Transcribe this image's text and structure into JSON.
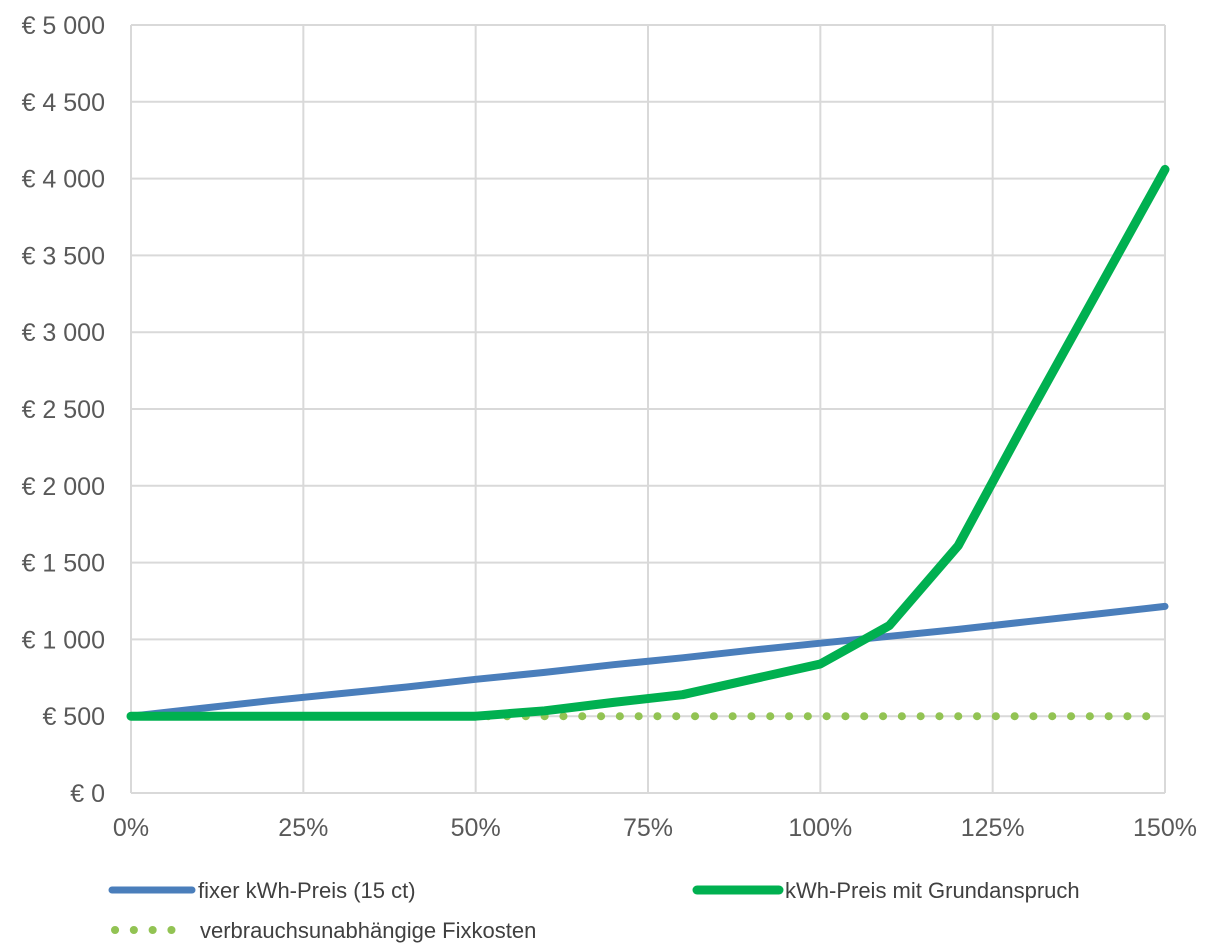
{
  "chart_data": {
    "type": "line",
    "title": "",
    "xlabel": "",
    "ylabel": "",
    "x": [
      0,
      10,
      20,
      30,
      40,
      50,
      60,
      70,
      80,
      90,
      100,
      110,
      120,
      130,
      140,
      150
    ],
    "x_ticks": [
      0,
      25,
      50,
      75,
      100,
      125,
      150
    ],
    "x_tick_labels": [
      "0%",
      "25%",
      "50%",
      "75%",
      "100%",
      "125%",
      "150%"
    ],
    "y_ticks": [
      0,
      500,
      1000,
      1500,
      2000,
      2500,
      3000,
      3500,
      4000,
      4500,
      5000
    ],
    "y_tick_labels": [
      "€ 0",
      "€ 500",
      "€ 1 000",
      "€ 1 500",
      "€ 2 000",
      "€ 2 500",
      "€ 3 000",
      "€ 3 500",
      "€ 4 000",
      "€ 4 500",
      "€ 5 000"
    ],
    "xlim": [
      0,
      150
    ],
    "ylim": [
      0,
      5000
    ],
    "grid": true,
    "legend_position": "bottom",
    "series": [
      {
        "name": "fixer kWh-Preis (15 ct)",
        "color": "#4A7EBB",
        "style": "solid",
        "values": [
          500,
          550,
          600,
          645,
          690,
          740,
          785,
          835,
          880,
          930,
          975,
          1020,
          1065,
          1115,
          1165,
          1215
        ]
      },
      {
        "name": "kWh-Preis mit Grundanspruch",
        "color": "#00B050",
        "style": "solid",
        "values": [
          500,
          500,
          500,
          500,
          500,
          500,
          535,
          590,
          640,
          740,
          840,
          1090,
          1610,
          2440,
          3250,
          4060
        ]
      },
      {
        "name": "verbrauchsunabhängige Fixkosten",
        "color": "#92C353",
        "style": "dotted",
        "values": [
          500,
          500,
          500,
          500,
          500,
          500,
          500,
          500,
          500,
          500,
          500,
          500,
          500,
          500,
          500,
          500
        ]
      }
    ]
  }
}
